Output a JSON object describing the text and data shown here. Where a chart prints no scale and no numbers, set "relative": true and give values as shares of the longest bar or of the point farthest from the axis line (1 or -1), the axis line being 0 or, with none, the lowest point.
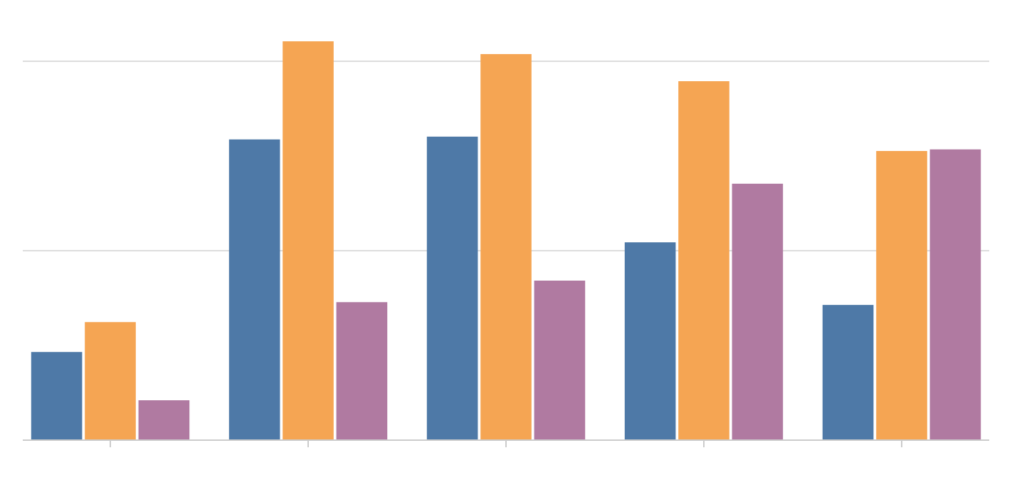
{
  "chart_data": {
    "type": "bar",
    "relative": true,
    "categories": [
      null,
      null,
      null,
      null,
      null
    ],
    "series": [
      {
        "color": "#4e79a7",
        "values": [
          0.221,
          0.754,
          0.761,
          0.496,
          0.339
        ]
      },
      {
        "color": "#f5a553",
        "values": [
          0.296,
          1,
          0.968,
          0.9,
          0.725
        ]
      },
      {
        "color": "#b07aa1",
        "values": [
          0.1,
          0.346,
          0.4,
          0.643,
          0.729
        ]
      }
    ],
    "ref_lines": [
      {
        "axis": "y",
        "value": 0.475,
        "color": "#dddddd"
      },
      {
        "axis": "y",
        "value": 0.95,
        "color": "#dddddd"
      }
    ]
  }
}
